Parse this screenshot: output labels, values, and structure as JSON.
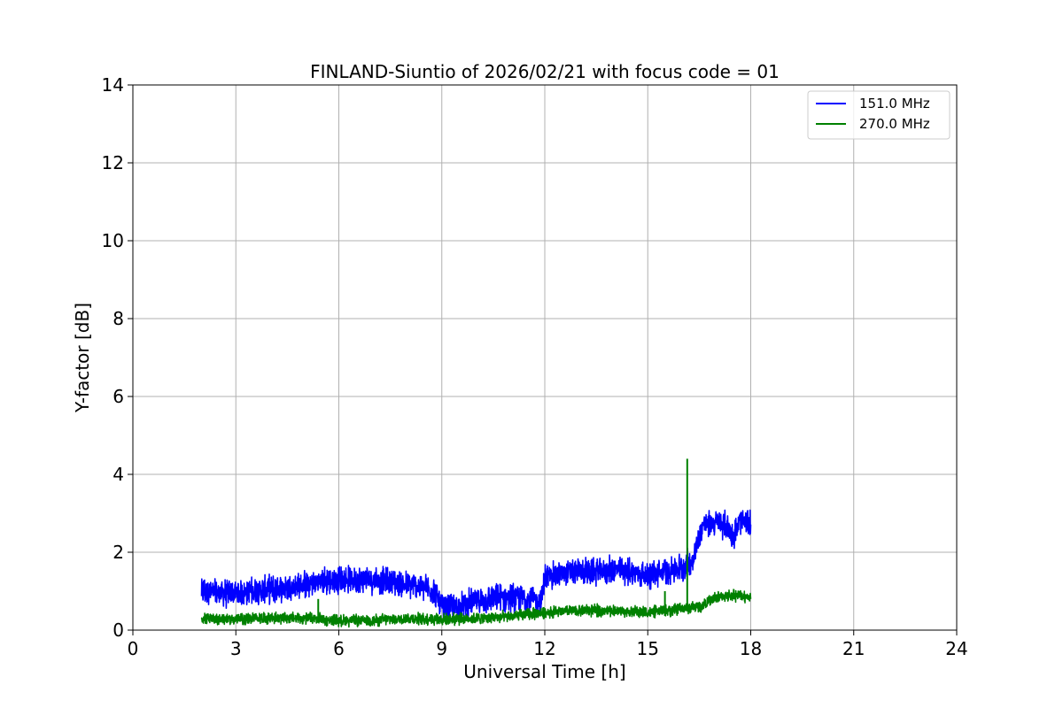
{
  "chart_data": {
    "type": "line",
    "title": "FINLAND-Siuntio of 2026/02/21 with focus code = 01",
    "xlabel": "Universal Time [h]",
    "ylabel": "Y-factor [dB]",
    "xlim": [
      0,
      24
    ],
    "ylim": [
      0,
      14
    ],
    "xticks": [
      0,
      3,
      6,
      9,
      12,
      15,
      18,
      21,
      24
    ],
    "yticks": [
      0,
      2,
      4,
      6,
      8,
      10,
      12,
      14
    ],
    "xtick_labels": [
      "0",
      "3",
      "6",
      "9",
      "12",
      "15",
      "18",
      "21",
      "24"
    ],
    "ytick_labels": [
      "0",
      "2",
      "4",
      "6",
      "8",
      "10",
      "12",
      "14"
    ],
    "grid": true,
    "legend_position": "top-right",
    "series": [
      {
        "name": "151.0 MHz",
        "color": "#0000ff",
        "noise_amplitude": 0.28,
        "x": [
          2.0,
          2.5,
          3.0,
          3.5,
          4.0,
          4.5,
          5.0,
          5.5,
          6.0,
          6.5,
          7.0,
          7.5,
          8.0,
          8.5,
          8.8,
          9.0,
          9.5,
          10.0,
          10.5,
          11.0,
          11.5,
          11.9,
          12.0,
          12.5,
          13.0,
          13.5,
          14.0,
          14.5,
          15.0,
          15.5,
          16.0,
          16.3,
          16.6,
          17.0,
          17.3,
          17.5,
          17.7,
          18.0
        ],
        "y": [
          1.0,
          0.95,
          0.95,
          1.0,
          1.05,
          1.1,
          1.15,
          1.25,
          1.3,
          1.3,
          1.3,
          1.25,
          1.15,
          1.1,
          1.0,
          0.55,
          0.6,
          0.75,
          0.8,
          0.85,
          0.8,
          0.75,
          1.35,
          1.45,
          1.5,
          1.5,
          1.55,
          1.5,
          1.4,
          1.5,
          1.6,
          1.8,
          2.7,
          2.75,
          2.7,
          2.4,
          2.8,
          2.7
        ]
      },
      {
        "name": "270.0 MHz",
        "color": "#008000",
        "noise_amplitude": 0.12,
        "x": [
          2.0,
          3.0,
          4.0,
          5.0,
          6.0,
          7.0,
          8.0,
          9.0,
          10.0,
          11.0,
          12.0,
          13.0,
          14.0,
          15.0,
          16.0,
          16.5,
          17.0,
          17.5,
          18.0
        ],
        "y": [
          0.3,
          0.28,
          0.32,
          0.3,
          0.25,
          0.25,
          0.3,
          0.28,
          0.3,
          0.35,
          0.45,
          0.5,
          0.5,
          0.45,
          0.55,
          0.6,
          0.85,
          0.9,
          0.85
        ],
        "spikes": [
          {
            "x": 5.4,
            "y": 0.8
          },
          {
            "x": 15.5,
            "y": 1.0
          },
          {
            "x": 16.15,
            "y": 4.4
          }
        ]
      }
    ]
  }
}
